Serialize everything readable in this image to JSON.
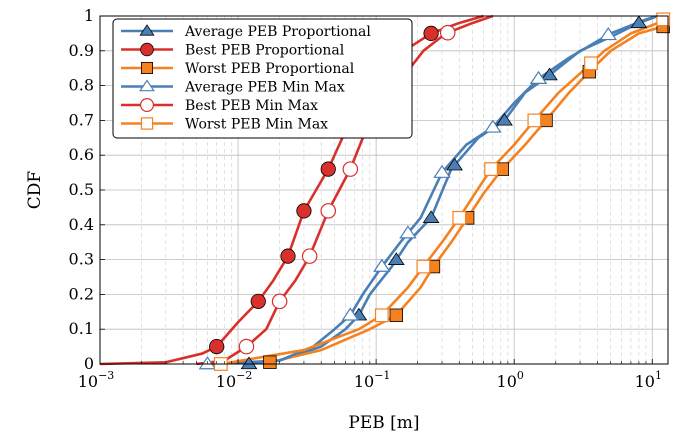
{
  "chart_data": {
    "type": "line",
    "xlabel": "PEB [m]",
    "ylabel": "CDF",
    "xscale": "log",
    "xlim": [
      0.001,
      13
    ],
    "ylim": [
      0,
      1
    ],
    "x_ticks": [
      {
        "value": 0.001,
        "base": "10",
        "exp": "−3"
      },
      {
        "value": 0.01,
        "base": "10",
        "exp": "−2"
      },
      {
        "value": 0.1,
        "base": "10",
        "exp": "−1"
      },
      {
        "value": 1,
        "base": "10",
        "exp": "0"
      },
      {
        "value": 10,
        "base": "10",
        "exp": "1"
      }
    ],
    "y_ticks": [
      "0",
      "0.1",
      "0.2",
      "0.3",
      "0.4",
      "0.5",
      "0.6",
      "0.7",
      "0.8",
      "0.9",
      "1"
    ],
    "grid": true,
    "legend_position": "top-left",
    "series": [
      {
        "name": "Average PEB Proportional",
        "color": "#4a7fb5",
        "marker": "triangle",
        "filled": true,
        "points": [
          [
            0.012,
            0
          ],
          [
            0.02,
            0.01
          ],
          [
            0.04,
            0.05
          ],
          [
            0.06,
            0.1
          ],
          [
            0.075,
            0.14
          ],
          [
            0.09,
            0.2
          ],
          [
            0.13,
            0.28
          ],
          [
            0.17,
            0.35
          ],
          [
            0.25,
            0.42
          ],
          [
            0.35,
            0.56
          ],
          [
            0.55,
            0.65
          ],
          [
            0.85,
            0.7
          ],
          [
            1.2,
            0.78
          ],
          [
            1.8,
            0.83
          ],
          [
            3,
            0.9
          ],
          [
            5,
            0.94
          ],
          [
            8,
            0.98
          ],
          [
            11,
            1
          ]
        ],
        "markers_x": [
          0.012,
          0.075,
          0.14,
          0.25,
          0.37,
          0.85,
          1.8,
          8
        ]
      },
      {
        "name": "Best PEB Proportional",
        "color": "#d9302c",
        "marker": "circle",
        "filled": true,
        "points": [
          [
            0.001,
            0
          ],
          [
            0.003,
            0.005
          ],
          [
            0.0055,
            0.03
          ],
          [
            0.007,
            0.05
          ],
          [
            0.01,
            0.12
          ],
          [
            0.014,
            0.18
          ],
          [
            0.018,
            0.24
          ],
          [
            0.023,
            0.31
          ],
          [
            0.03,
            0.44
          ],
          [
            0.045,
            0.56
          ],
          [
            0.065,
            0.7
          ],
          [
            0.1,
            0.8
          ],
          [
            0.16,
            0.9
          ],
          [
            0.25,
            0.95
          ],
          [
            0.4,
            0.98
          ],
          [
            0.6,
            1
          ]
        ],
        "markers_x": [
          0.007,
          0.014,
          0.023,
          0.03,
          0.045,
          0.25
        ]
      },
      {
        "name": "Worst PEB Proportional",
        "color": "#f58220",
        "marker": "square",
        "filled": true,
        "points": [
          [
            0.015,
            0
          ],
          [
            0.04,
            0.04
          ],
          [
            0.09,
            0.1
          ],
          [
            0.14,
            0.14
          ],
          [
            0.21,
            0.22
          ],
          [
            0.26,
            0.28
          ],
          [
            0.35,
            0.35
          ],
          [
            0.46,
            0.42
          ],
          [
            0.6,
            0.49
          ],
          [
            0.82,
            0.56
          ],
          [
            1.2,
            0.63
          ],
          [
            1.7,
            0.7
          ],
          [
            2.5,
            0.78
          ],
          [
            3.5,
            0.84
          ],
          [
            5,
            0.9
          ],
          [
            8,
            0.95
          ],
          [
            12,
            0.97
          ],
          [
            13,
            1
          ]
        ],
        "markers_x": [
          0.017,
          0.14,
          0.26,
          0.46,
          0.82,
          1.7,
          3.5,
          12
        ]
      },
      {
        "name": "Average PEB Min Max",
        "color": "#4a7fb5",
        "marker": "triangle",
        "filled": false,
        "points": [
          [
            0.006,
            0
          ],
          [
            0.02,
            0.01
          ],
          [
            0.035,
            0.05
          ],
          [
            0.05,
            0.1
          ],
          [
            0.065,
            0.14
          ],
          [
            0.08,
            0.2
          ],
          [
            0.11,
            0.28
          ],
          [
            0.15,
            0.35
          ],
          [
            0.21,
            0.42
          ],
          [
            0.3,
            0.55
          ],
          [
            0.45,
            0.63
          ],
          [
            0.7,
            0.68
          ],
          [
            1,
            0.75
          ],
          [
            1.5,
            0.82
          ],
          [
            2.5,
            0.88
          ],
          [
            5,
            0.95
          ],
          [
            9,
            0.99
          ],
          [
            11,
            1
          ]
        ],
        "markers_x": [
          0.006,
          0.065,
          0.11,
          0.17,
          0.3,
          0.7,
          1.5,
          4.8
        ]
      },
      {
        "name": "Best PEB Min Max",
        "color": "#d9302c",
        "marker": "circle",
        "filled": false,
        "points": [
          [
            0.005,
            0
          ],
          [
            0.008,
            0.01
          ],
          [
            0.0115,
            0.05
          ],
          [
            0.016,
            0.1
          ],
          [
            0.02,
            0.18
          ],
          [
            0.026,
            0.24
          ],
          [
            0.033,
            0.31
          ],
          [
            0.045,
            0.44
          ],
          [
            0.065,
            0.56
          ],
          [
            0.09,
            0.7
          ],
          [
            0.14,
            0.8
          ],
          [
            0.22,
            0.9
          ],
          [
            0.32,
            0.95
          ],
          [
            0.5,
            0.98
          ],
          [
            0.7,
            1
          ]
        ],
        "markers_x": [
          0.0115,
          0.02,
          0.033,
          0.045,
          0.065,
          0.33
        ]
      },
      {
        "name": "Worst PEB Min Max",
        "color": "#f58220",
        "marker": "square",
        "filled": false,
        "points": [
          [
            0.0075,
            0
          ],
          [
            0.03,
            0.04
          ],
          [
            0.075,
            0.1
          ],
          [
            0.11,
            0.14
          ],
          [
            0.17,
            0.22
          ],
          [
            0.22,
            0.28
          ],
          [
            0.3,
            0.35
          ],
          [
            0.4,
            0.42
          ],
          [
            0.52,
            0.49
          ],
          [
            0.68,
            0.56
          ],
          [
            1,
            0.63
          ],
          [
            1.4,
            0.7
          ],
          [
            2.1,
            0.78
          ],
          [
            3.1,
            0.84
          ],
          [
            4.5,
            0.9
          ],
          [
            7,
            0.95
          ],
          [
            11,
            0.98
          ],
          [
            13,
            1
          ]
        ],
        "markers_x": [
          0.0075,
          0.11,
          0.22,
          0.4,
          0.68,
          1.4,
          3.6,
          12
        ]
      }
    ]
  }
}
